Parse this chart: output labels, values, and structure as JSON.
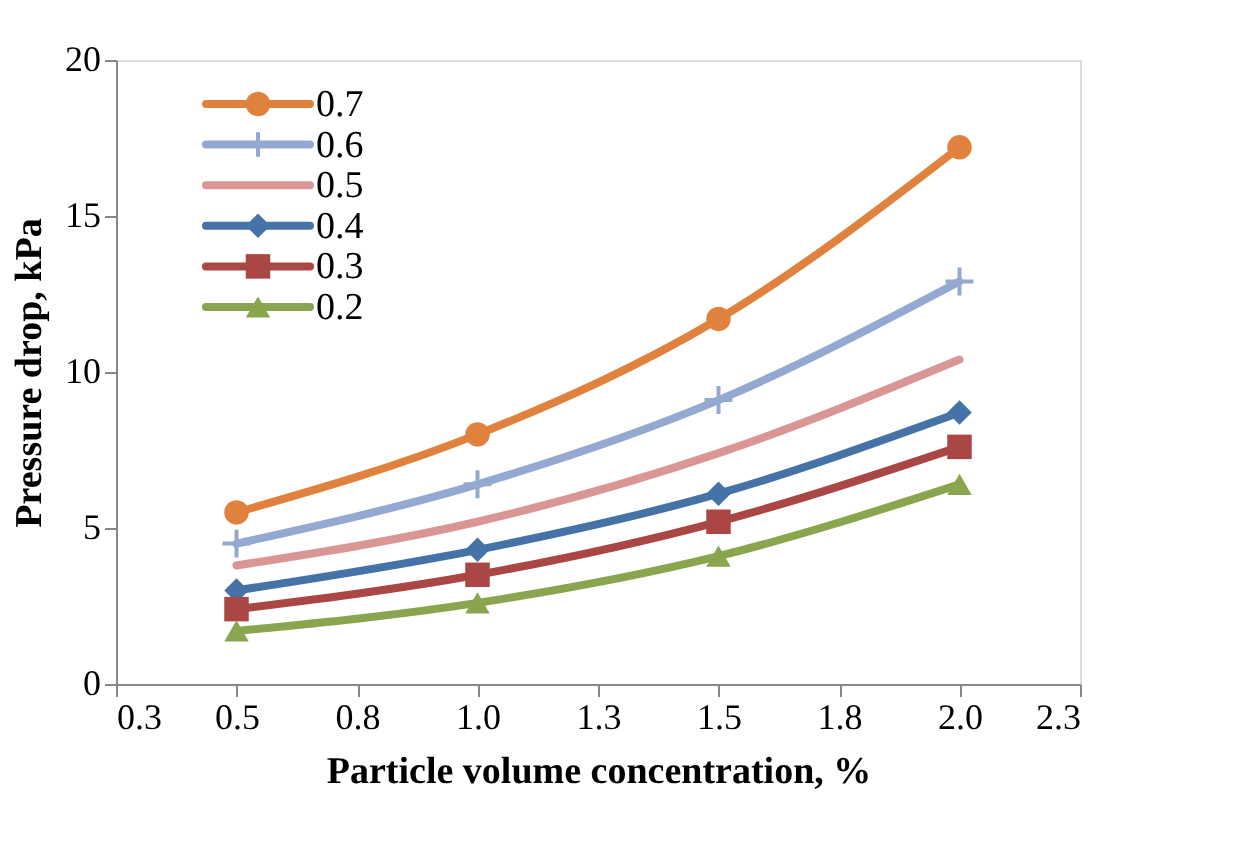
{
  "chart_data": {
    "type": "line",
    "xlabel": "Particle volume concentration, %",
    "ylabel": "Pressure drop, kPa",
    "x": [
      0.5,
      1.0,
      1.5,
      2.0
    ],
    "xlim": [
      0.25,
      2.25
    ],
    "xticks": [
      {
        "value": 0.25,
        "label": "0.3"
      },
      {
        "value": 0.5,
        "label": "0.5"
      },
      {
        "value": 0.75,
        "label": "0.8"
      },
      {
        "value": 1.0,
        "label": "1.0"
      },
      {
        "value": 1.25,
        "label": "1.3"
      },
      {
        "value": 1.5,
        "label": "1.5"
      },
      {
        "value": 1.75,
        "label": "1.8"
      },
      {
        "value": 2.0,
        "label": "2.0"
      },
      {
        "value": 2.25,
        "label": "2.3"
      }
    ],
    "ylim": [
      0,
      20
    ],
    "yticks": [
      0,
      5,
      10,
      15,
      20
    ],
    "grid": false,
    "legend": "top left",
    "series": [
      {
        "name": "0.7",
        "color": "#e0823d",
        "marker": "circle",
        "values": [
          5.5,
          8.0,
          11.7,
          17.2
        ]
      },
      {
        "name": "0.6",
        "color": "#93a9d2",
        "marker": "cross",
        "values": [
          4.5,
          6.4,
          9.1,
          12.9
        ]
      },
      {
        "name": "0.5",
        "color": "#d99694",
        "marker": "none",
        "values": [
          3.8,
          5.2,
          7.4,
          10.4
        ]
      },
      {
        "name": "0.4",
        "color": "#4572a7",
        "marker": "diamond",
        "values": [
          3.0,
          4.3,
          6.1,
          8.7
        ]
      },
      {
        "name": "0.3",
        "color": "#aa4643",
        "marker": "square",
        "values": [
          2.4,
          3.5,
          5.2,
          7.6
        ]
      },
      {
        "name": "0.2",
        "color": "#89a54e",
        "marker": "triangle",
        "values": [
          1.7,
          2.6,
          4.1,
          6.4
        ]
      }
    ]
  }
}
